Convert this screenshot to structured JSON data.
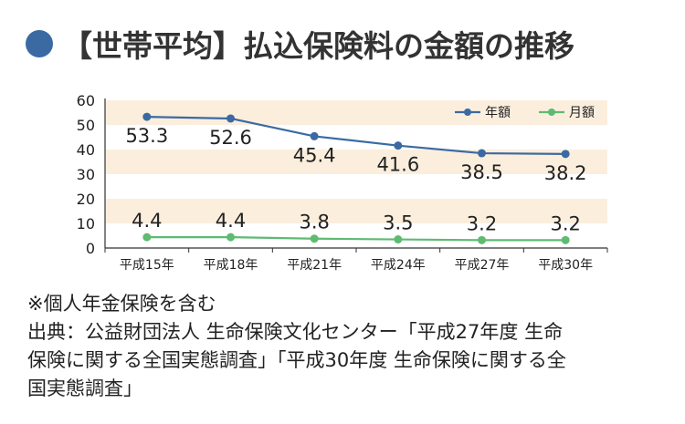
{
  "title": "【世帯平均】払込保険料の金額の推移",
  "chart_data": {
    "type": "line",
    "categories": [
      "平成15年",
      "平成18年",
      "平成21年",
      "平成24年",
      "平成27年",
      "平成30年"
    ],
    "series": [
      {
        "name": "年額",
        "values": [
          53.3,
          52.6,
          45.4,
          41.6,
          38.5,
          38.2
        ],
        "color": "#3b6aa3"
      },
      {
        "name": "月額",
        "values": [
          4.4,
          4.4,
          3.8,
          3.5,
          3.2,
          3.2
        ],
        "color": "#5dbb72"
      }
    ],
    "yticks": [
      0,
      10,
      20,
      30,
      40,
      50,
      60
    ],
    "ylim": [
      0,
      60
    ],
    "band_color": "#fbeedd",
    "legend_position": "top-right"
  },
  "notes": {
    "line1": "※個人年金保険を含む",
    "line2": "出典：公益財団法人 生命保険文化センター「平成27年度 生命",
    "line3": "保険に関する全国実態調査」「平成30年度 生命保険に関する全",
    "line4": "国実態調査」"
  }
}
